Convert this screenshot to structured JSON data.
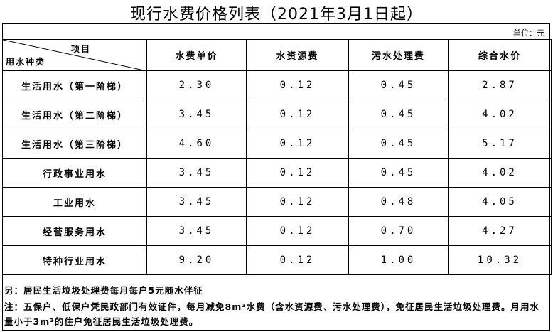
{
  "title": "现行水费价格列表（2021年3月1日起）",
  "unit": "单位：元",
  "header": {
    "item": "项目",
    "category": "用水种类",
    "columns": [
      "水费单价",
      "水资源费",
      "污水处理费",
      "综合水价"
    ]
  },
  "table": {
    "rows": [
      [
        "生活用水（第一阶梯）",
        "2.30",
        "0.12",
        "0.45",
        "2.87"
      ],
      [
        "生活用水（第二阶梯）",
        "3.45",
        "0.12",
        "0.45",
        "4.02"
      ],
      [
        "生活用水（第三阶梯）",
        "4.60",
        "0.12",
        "0.45",
        "5.17"
      ],
      [
        "行政事业用水",
        "3.45",
        "0.12",
        "0.45",
        "4.02"
      ],
      [
        "工业用水",
        "3.45",
        "0.12",
        "0.48",
        "4.05"
      ],
      [
        "经营服务用水",
        "3.45",
        "0.12",
        "0.70",
        "4.27"
      ],
      [
        "特种行业用水",
        "9.20",
        "0.12",
        "1.00",
        "10.32"
      ]
    ]
  },
  "notes": [
    "另：居民生活垃圾处理费每月每户5元随水伴征",
    "注：五保户、低保户凭民政部门有效证件，每月减免8m³水费（含水资源费、污水处理费），免征居民生活垃圾处理费。月用水量小于3m³的住户免征居民生活垃圾处理费。"
  ]
}
